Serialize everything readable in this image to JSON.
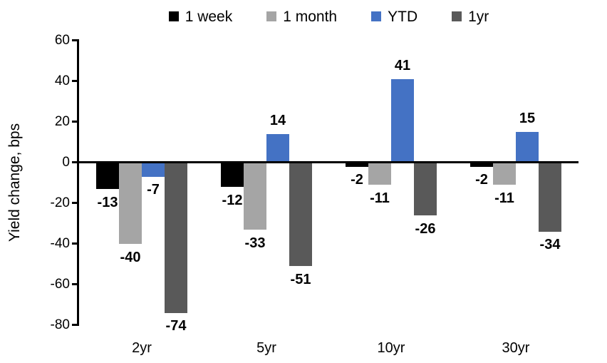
{
  "chart_data": {
    "type": "bar",
    "title": "",
    "ylabel": "Yield change, bps",
    "xlabel": "",
    "categories": [
      "2yr",
      "5yr",
      "10yr",
      "30yr"
    ],
    "series": [
      {
        "name": "1 week",
        "color": "#000000",
        "values": [
          -13,
          -12,
          -2,
          -2
        ]
      },
      {
        "name": "1 month",
        "color": "#A5A5A5",
        "values": [
          -40,
          -33,
          -11,
          -11
        ]
      },
      {
        "name": "YTD",
        "color": "#4472C4",
        "values": [
          -7,
          14,
          41,
          15
        ]
      },
      {
        "name": "1yr",
        "color": "#595959",
        "values": [
          -74,
          -51,
          -26,
          -34
        ]
      }
    ],
    "ylim": [
      -80,
      60
    ],
    "yticks": [
      60,
      40,
      20,
      0,
      -20,
      -40,
      -60,
      -80
    ],
    "grid": false,
    "data_labels": true,
    "legend_position": "top",
    "axis_color": "#000000"
  }
}
